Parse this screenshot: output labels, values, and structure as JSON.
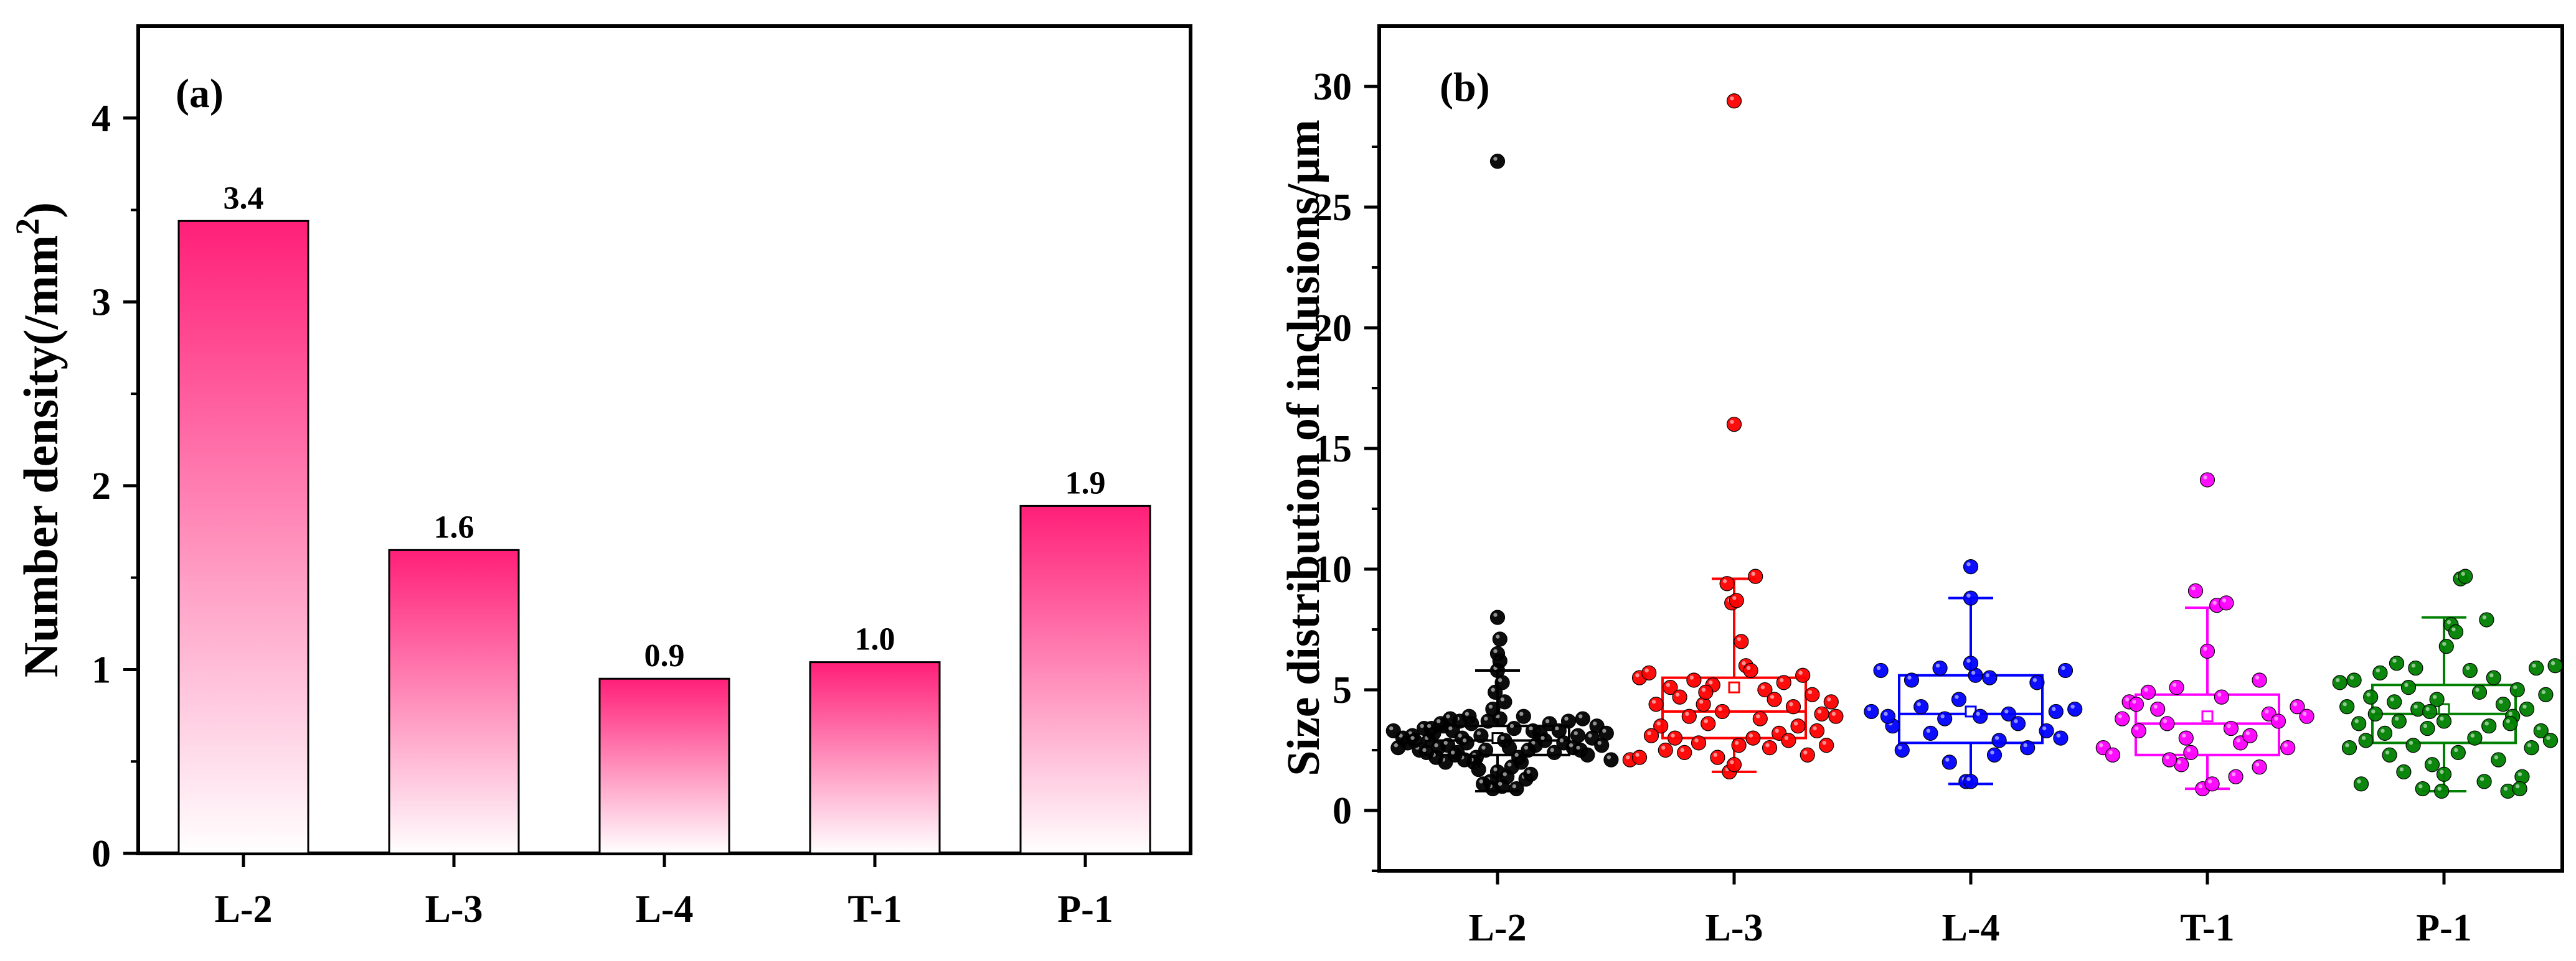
{
  "chart_data": [
    {
      "type": "bar",
      "panel_label": "(a)",
      "title": "",
      "ylabel": "Number density(/mm",
      "ylabel_sup": "2",
      "ylabel_end": ")",
      "xlabel": "",
      "categories": [
        "L-2",
        "L-3",
        "L-4",
        "T-1",
        "P-1"
      ],
      "values": [
        3.44,
        1.65,
        0.95,
        1.04,
        1.89
      ],
      "value_labels": [
        "3.4",
        "1.6",
        "0.9",
        "1.0",
        "1.9"
      ],
      "ylim": [
        0,
        4.5
      ],
      "yticks": [
        0,
        1,
        2,
        3,
        4
      ],
      "ytick_labels": [
        "0",
        "1",
        "2",
        "3",
        "4"
      ],
      "bar_color_top": "#ff1f78",
      "bar_color_bottom": "#ffffff",
      "grid": false
    },
    {
      "type": "box-scatter",
      "panel_label": "(b)",
      "title": "",
      "ylabel": "Size distribution of inclusions/μm",
      "xlabel": "",
      "categories": [
        "L-2",
        "L-3",
        "L-4",
        "T-1",
        "P-1"
      ],
      "ylim": [
        -2.5,
        32.5
      ],
      "yticks": [
        0,
        5,
        10,
        15,
        20,
        25,
        30
      ],
      "ytick_labels": [
        "0",
        "5",
        "10",
        "15",
        "20",
        "25",
        "30"
      ],
      "grid": false,
      "series": [
        {
          "name": "L-2",
          "color": "#000000",
          "box": {
            "q1": 2.3,
            "median": 2.9,
            "q3": 3.5,
            "mean": 3.0,
            "whisker_low": 0.8,
            "whisker_high": 5.8
          },
          "points": [
            [
              -0.38,
              2.8
            ],
            [
              -0.36,
              3.1
            ],
            [
              -0.33,
              2.5
            ],
            [
              -0.31,
              3.4
            ],
            [
              -0.29,
              2.9
            ],
            [
              -0.27,
              3.2
            ],
            [
              -0.25,
              2.6
            ],
            [
              -0.23,
              3.5
            ],
            [
              -0.21,
              2.7
            ],
            [
              -0.19,
              3.3
            ],
            [
              -0.17,
              2.4
            ],
            [
              -0.15,
              3.0
            ],
            [
              -0.13,
              2.8
            ],
            [
              -0.11,
              3.6
            ],
            [
              -0.09,
              2.2
            ],
            [
              -0.07,
              3.1
            ],
            [
              -0.05,
              2.5
            ],
            [
              -0.03,
              1.2
            ],
            [
              -0.02,
              0.9
            ],
            [
              0.0,
              1.6
            ],
            [
              0.02,
              1.0
            ],
            [
              0.04,
              1.4
            ],
            [
              0.06,
              1.8
            ],
            [
              0.08,
              0.9
            ],
            [
              0.1,
              2.0
            ],
            [
              -0.06,
              1.1
            ],
            [
              -0.08,
              1.7
            ],
            [
              0.12,
              1.3
            ],
            [
              -0.1,
              2.0
            ],
            [
              0.14,
              1.5
            ],
            [
              0.01,
              3.8
            ],
            [
              -0.02,
              4.2
            ],
            [
              0.03,
              4.5
            ],
            [
              -0.01,
              4.9
            ],
            [
              0.02,
              5.3
            ],
            [
              0.0,
              5.8
            ],
            [
              0.01,
              6.2
            ],
            [
              0.0,
              6.5
            ],
            [
              0.01,
              7.1
            ],
            [
              0.0,
              8.0
            ],
            [
              0.16,
              2.7
            ],
            [
              0.18,
              3.2
            ],
            [
              0.2,
              2.9
            ],
            [
              0.22,
              3.6
            ],
            [
              0.24,
              2.4
            ],
            [
              0.26,
              3.3
            ],
            [
              0.28,
              2.8
            ],
            [
              0.3,
              3.7
            ],
            [
              0.32,
              2.6
            ],
            [
              0.34,
              3.1
            ],
            [
              0.36,
              3.8
            ],
            [
              0.38,
              2.3
            ],
            [
              0.4,
              3.0
            ],
            [
              0.42,
              3.5
            ],
            [
              0.44,
              2.7
            ],
            [
              0.46,
              3.2
            ],
            [
              0.48,
              2.1
            ],
            [
              -0.4,
              3.0
            ],
            [
              -0.42,
              2.6
            ],
            [
              -0.44,
              3.3
            ],
            [
              -0.12,
              3.9
            ],
            [
              -0.14,
              2.1
            ],
            [
              -0.16,
              3.7
            ],
            [
              -0.18,
              2.3
            ],
            [
              -0.2,
              3.8
            ],
            [
              -0.22,
              2.0
            ],
            [
              -0.24,
              3.6
            ],
            [
              -0.26,
              2.2
            ],
            [
              -0.28,
              3.4
            ],
            [
              -0.3,
              2.4
            ],
            [
              0.05,
              2.6
            ],
            [
              0.07,
              3.4
            ],
            [
              0.09,
              2.2
            ],
            [
              0.11,
              3.9
            ],
            [
              0.13,
              2.5
            ],
            [
              -0.04,
              3.7
            ],
            [
              0.03,
              2.9
            ],
            [
              0.15,
              3.3
            ],
            [
              -0.35,
              2.9
            ],
            [
              0.35,
              2.5
            ],
            [
              0.0,
              26.9
            ]
          ]
        },
        {
          "name": "L-3",
          "color": "#ff0000",
          "box": {
            "q1": 3.0,
            "median": 4.1,
            "q3": 5.5,
            "mean": 5.1,
            "whisker_low": 1.6,
            "whisker_high": 9.6
          },
          "points": [
            [
              -0.44,
              2.1
            ],
            [
              -0.4,
              2.2
            ],
            [
              -0.4,
              5.5
            ],
            [
              -0.36,
              5.7
            ],
            [
              -0.33,
              4.4
            ],
            [
              -0.31,
              3.5
            ],
            [
              -0.29,
              2.5
            ],
            [
              -0.27,
              5.1
            ],
            [
              -0.25,
              3.0
            ],
            [
              -0.23,
              4.7
            ],
            [
              -0.21,
              2.4
            ],
            [
              -0.19,
              3.9
            ],
            [
              -0.17,
              5.4
            ],
            [
              -0.15,
              2.8
            ],
            [
              -0.13,
              4.4
            ],
            [
              -0.11,
              3.6
            ],
            [
              -0.09,
              5.2
            ],
            [
              -0.07,
              2.2
            ],
            [
              -0.05,
              4.1
            ],
            [
              -0.03,
              9.4
            ],
            [
              -0.01,
              8.6
            ],
            [
              0.01,
              8.7
            ],
            [
              0.03,
              7.0
            ],
            [
              0.05,
              6.0
            ],
            [
              0.07,
              5.8
            ],
            [
              0.09,
              9.7
            ],
            [
              -0.02,
              1.6
            ],
            [
              0.0,
              1.9
            ],
            [
              0.02,
              2.7
            ],
            [
              0.11,
              3.8
            ],
            [
              0.13,
              5.0
            ],
            [
              0.15,
              2.6
            ],
            [
              0.17,
              4.6
            ],
            [
              0.19,
              3.2
            ],
            [
              0.21,
              5.3
            ],
            [
              0.23,
              2.9
            ],
            [
              0.25,
              4.3
            ],
            [
              0.27,
              3.5
            ],
            [
              0.29,
              5.6
            ],
            [
              0.31,
              2.3
            ],
            [
              0.33,
              4.8
            ],
            [
              0.35,
              3.3
            ],
            [
              0.37,
              4.0
            ],
            [
              0.39,
              2.7
            ],
            [
              0.41,
              4.5
            ],
            [
              0.43,
              3.9
            ],
            [
              -0.35,
              3.1
            ],
            [
              -0.12,
              4.9
            ],
            [
              0.08,
              3.0
            ],
            [
              0.0,
              16.0
            ],
            [
              0.0,
              29.4
            ]
          ]
        },
        {
          "name": "L-4",
          "color": "#0000ff",
          "box": {
            "q1": 2.8,
            "median": 4.0,
            "q3": 5.6,
            "mean": 4.1,
            "whisker_low": 1.1,
            "whisker_high": 8.8
          },
          "points": [
            [
              -0.38,
              5.8
            ],
            [
              -0.33,
              3.5
            ],
            [
              -0.29,
              2.5
            ],
            [
              -0.25,
              5.4
            ],
            [
              -0.21,
              4.3
            ],
            [
              -0.17,
              3.2
            ],
            [
              -0.13,
              5.9
            ],
            [
              -0.09,
              2.0
            ],
            [
              -0.05,
              4.6
            ],
            [
              -0.02,
              1.2
            ],
            [
              0.0,
              1.2
            ],
            [
              0.02,
              5.6
            ],
            [
              0.0,
              6.1
            ],
            [
              0.0,
              8.8
            ],
            [
              0.0,
              10.1
            ],
            [
              0.04,
              3.9
            ],
            [
              0.08,
              5.5
            ],
            [
              0.12,
              2.9
            ],
            [
              0.16,
              4.0
            ],
            [
              0.2,
              3.6
            ],
            [
              0.24,
              2.6
            ],
            [
              0.28,
              5.3
            ],
            [
              0.32,
              3.3
            ],
            [
              0.36,
              4.1
            ],
            [
              0.4,
              5.8
            ],
            [
              0.44,
              4.2
            ],
            [
              -0.42,
              4.1
            ],
            [
              0.1,
              2.3
            ],
            [
              -0.11,
              3.8
            ],
            [
              0.38,
              3.0
            ],
            [
              -0.35,
              3.9
            ]
          ]
        },
        {
          "name": "T-1",
          "color": "#ff00ff",
          "box": {
            "q1": 2.3,
            "median": 3.6,
            "q3": 4.8,
            "mean": 3.9,
            "whisker_low": 0.9,
            "whisker_high": 8.4
          },
          "points": [
            [
              -0.44,
              2.6
            ],
            [
              -0.4,
              2.3
            ],
            [
              -0.36,
              3.8
            ],
            [
              -0.33,
              4.5
            ],
            [
              -0.29,
              3.3
            ],
            [
              -0.25,
              4.9
            ],
            [
              -0.21,
              4.2
            ],
            [
              -0.17,
              3.6
            ],
            [
              -0.13,
              5.1
            ],
            [
              -0.11,
              1.9
            ],
            [
              -0.07,
              2.4
            ],
            [
              -0.05,
              9.1
            ],
            [
              -0.02,
              0.9
            ],
            [
              0.02,
              1.1
            ],
            [
              0.0,
              6.6
            ],
            [
              0.04,
              8.5
            ],
            [
              0.08,
              8.6
            ],
            [
              0.0,
              13.7
            ],
            [
              0.06,
              4.7
            ],
            [
              0.1,
              3.4
            ],
            [
              0.14,
              2.8
            ],
            [
              0.18,
              3.1
            ],
            [
              0.22,
              5.4
            ],
            [
              0.26,
              4.0
            ],
            [
              0.3,
              3.7
            ],
            [
              0.34,
              2.6
            ],
            [
              0.38,
              4.3
            ],
            [
              0.42,
              3.9
            ],
            [
              -0.09,
              3.0
            ],
            [
              0.12,
              1.4
            ],
            [
              -0.16,
              2.1
            ],
            [
              0.22,
              1.8
            ],
            [
              -0.3,
              4.4
            ]
          ]
        },
        {
          "name": "P-1",
          "color": "#008000",
          "box": {
            "q1": 2.8,
            "median": 4.0,
            "q3": 5.2,
            "mean": 4.2,
            "whisker_low": 0.8,
            "whisker_high": 8.0
          },
          "points": [
            [
              -0.44,
              5.3
            ],
            [
              -0.41,
              4.3
            ],
            [
              -0.38,
              5.4
            ],
            [
              -0.36,
              3.6
            ],
            [
              -0.33,
              2.9
            ],
            [
              -0.31,
              4.7
            ],
            [
              -0.29,
              4.0
            ],
            [
              -0.27,
              5.7
            ],
            [
              -0.25,
              3.2
            ],
            [
              -0.23,
              2.3
            ],
            [
              -0.21,
              4.5
            ],
            [
              -0.19,
              3.7
            ],
            [
              -0.17,
              1.6
            ],
            [
              -0.15,
              5.1
            ],
            [
              -0.13,
              2.7
            ],
            [
              -0.11,
              4.2
            ],
            [
              -0.09,
              0.9
            ],
            [
              -0.07,
              3.4
            ],
            [
              -0.05,
              1.9
            ],
            [
              -0.03,
              4.6
            ],
            [
              -0.01,
              0.8
            ],
            [
              0.01,
              6.8
            ],
            [
              0.03,
              7.7
            ],
            [
              0.05,
              7.4
            ],
            [
              0.07,
              9.6
            ],
            [
              0.09,
              9.7
            ],
            [
              0.11,
              5.8
            ],
            [
              0.13,
              3.0
            ],
            [
              0.15,
              4.9
            ],
            [
              0.17,
              1.2
            ],
            [
              0.19,
              3.5
            ],
            [
              0.21,
              5.5
            ],
            [
              0.23,
              2.1
            ],
            [
              0.25,
              4.4
            ],
            [
              0.27,
              0.8
            ],
            [
              0.29,
              3.9
            ],
            [
              0.31,
              5.0
            ],
            [
              0.33,
              1.4
            ],
            [
              0.35,
              4.2
            ],
            [
              0.37,
              2.6
            ],
            [
              0.39,
              5.9
            ],
            [
              0.41,
              3.3
            ],
            [
              0.43,
              4.8
            ],
            [
              0.45,
              2.9
            ],
            [
              0.47,
              6.0
            ],
            [
              -0.35,
              1.1
            ],
            [
              -0.12,
              5.9
            ],
            [
              0.0,
              1.5
            ],
            [
              0.06,
              2.4
            ],
            [
              -0.2,
              6.1
            ],
            [
              0.18,
              7.9
            ],
            [
              -0.06,
              4.1
            ],
            [
              0.28,
              3.6
            ],
            [
              -0.4,
              2.6
            ],
            [
              0.32,
              0.9
            ],
            [
              0.0,
              3.7
            ]
          ]
        }
      ]
    }
  ]
}
